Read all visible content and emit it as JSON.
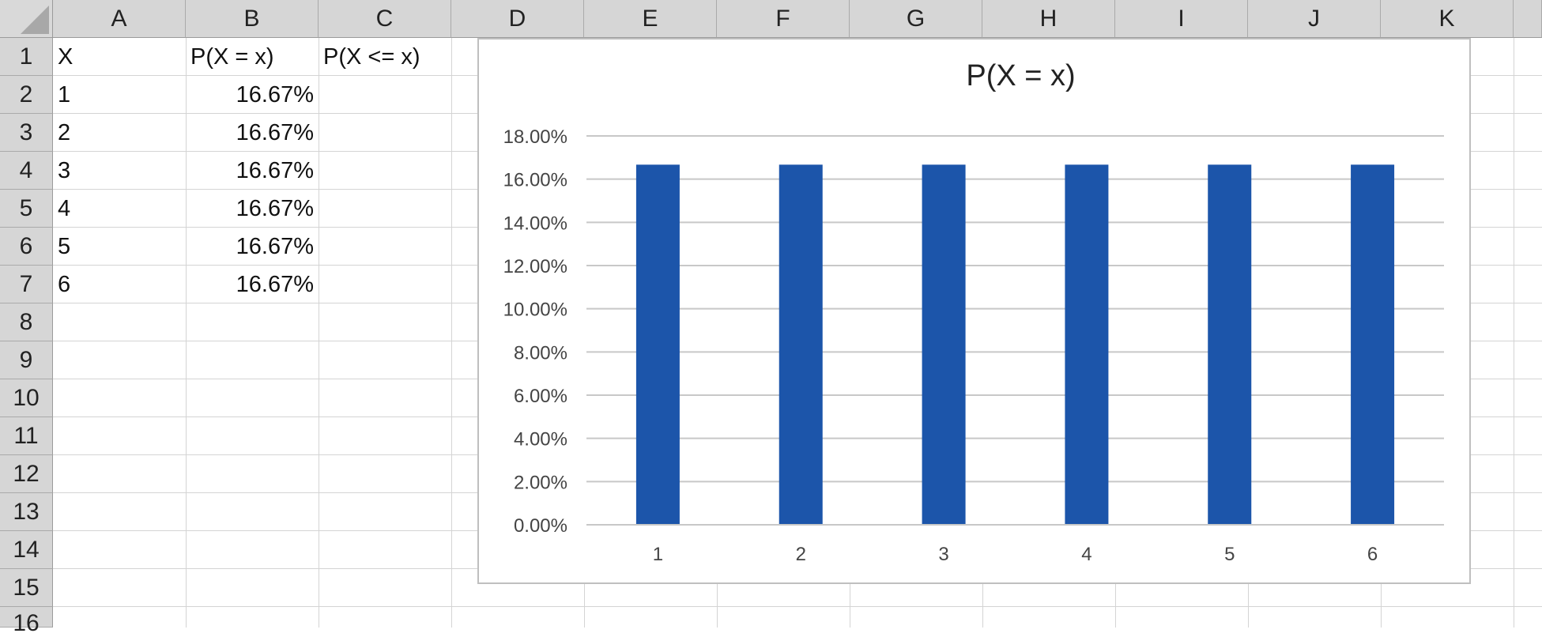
{
  "columns": [
    "A",
    "B",
    "C",
    "D",
    "E",
    "F",
    "G",
    "H",
    "I",
    "J",
    "K"
  ],
  "rows": [
    "1",
    "2",
    "3",
    "4",
    "5",
    "6",
    "7",
    "8",
    "9",
    "10",
    "11",
    "12",
    "13",
    "14",
    "15",
    "16"
  ],
  "cells": {
    "A1": "X",
    "B1": "P(X = x)",
    "C1": "P(X <= x)",
    "A2": "1",
    "B2": "16.67%",
    "A3": "2",
    "B3": "16.67%",
    "A4": "3",
    "B4": "16.67%",
    "A5": "4",
    "B5": "16.67%",
    "A6": "5",
    "B6": "16.67%",
    "A7": "6",
    "B7": "16.67%"
  },
  "chart_data": {
    "type": "bar",
    "title": "P(X = x)",
    "categories": [
      "1",
      "2",
      "3",
      "4",
      "5",
      "6"
    ],
    "values": [
      16.67,
      16.67,
      16.67,
      16.67,
      16.67,
      16.67
    ],
    "ylim": [
      0,
      18
    ],
    "yticks": [
      "0.00%",
      "2.00%",
      "4.00%",
      "6.00%",
      "8.00%",
      "10.00%",
      "12.00%",
      "14.00%",
      "16.00%",
      "18.00%"
    ],
    "xlabel": "",
    "ylabel": "",
    "grid": true,
    "legend": "none",
    "bar_color": "#1c55aa"
  }
}
